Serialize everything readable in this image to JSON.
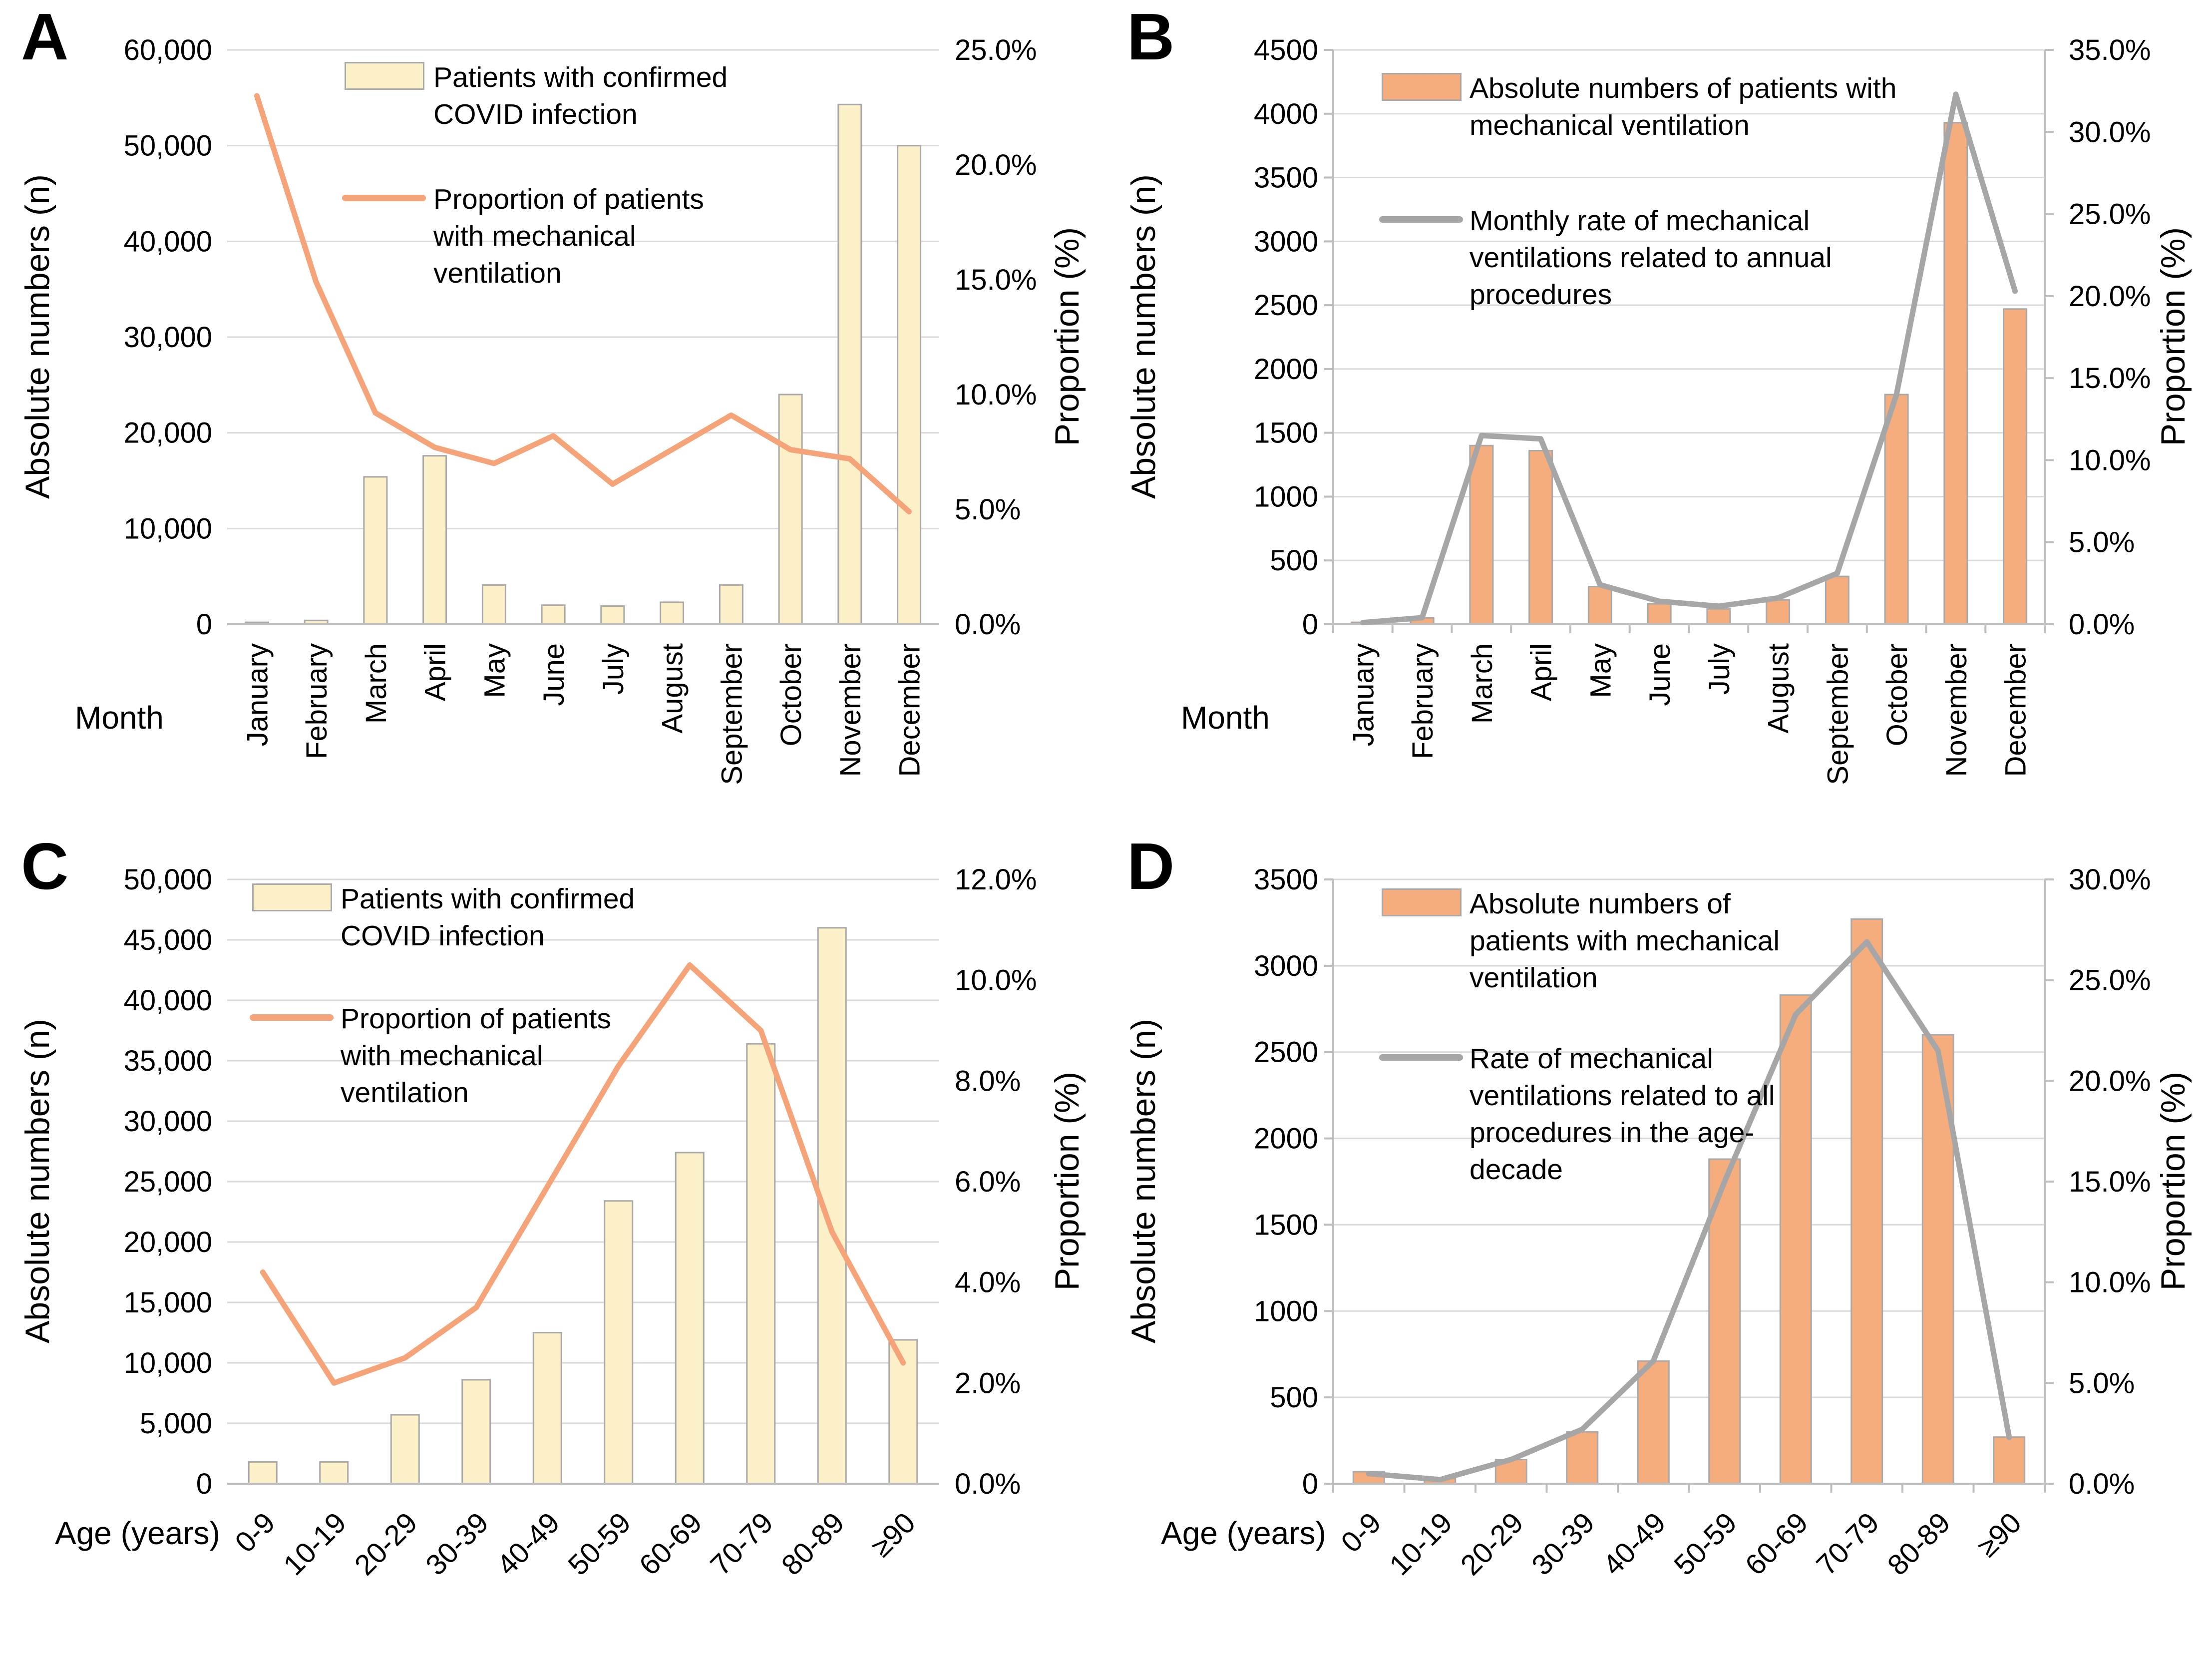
{
  "figure": {
    "background": "#ffffff",
    "panel_letters": [
      "A",
      "B",
      "C",
      "D"
    ]
  },
  "colors": {
    "cream_bar_fill": "#FCF0C8",
    "orange_bar_fill": "#F5AD7D",
    "bar_stroke": "#A9A9A9",
    "orange_line": "#F4A478",
    "gray_line": "#A6A6A6",
    "gridline": "#D9D9D9",
    "axis_line": "#BFBFBF",
    "text": "#000000"
  },
  "chart_data": [
    {
      "panel_label": "A",
      "type": "bar+line",
      "x_axis": {
        "title": "Month",
        "categories": [
          "January",
          "February",
          "March",
          "April",
          "May",
          "June",
          "July",
          "August",
          "September",
          "October",
          "November",
          "December"
        ]
      },
      "left_axis": {
        "title": "Absolute numbers (n)",
        "min": 0,
        "max": 60000,
        "step": 10000,
        "tick_labels": [
          "60,000",
          "50,000",
          "40,000",
          "30,000",
          "20,000",
          "10,000",
          "0"
        ]
      },
      "right_axis": {
        "title": "Proportion (%)",
        "min": 0,
        "max": 25,
        "step": 5,
        "tick_labels": [
          "25.0%",
          "20.0%",
          "15.0%",
          "10.0%",
          "5.0%",
          "0.0%"
        ]
      },
      "bars": {
        "legend_label": "Patients with confirmed COVID infection",
        "color_key": "cream_bar_fill",
        "values": [
          200,
          400,
          15400,
          17600,
          4100,
          2000,
          1900,
          2300,
          4100,
          24000,
          54300,
          50000
        ]
      },
      "line": {
        "legend_label": "Proportion of patients with mechanical ventilation",
        "color_key": "orange_line",
        "values_pct": [
          23.0,
          14.9,
          9.2,
          7.7,
          7.0,
          8.2,
          6.1,
          7.6,
          9.1,
          7.6,
          7.2,
          4.9
        ]
      }
    },
    {
      "panel_label": "B",
      "type": "bar+line",
      "x_axis": {
        "title": "Month",
        "categories": [
          "January",
          "February",
          "March",
          "April",
          "May",
          "June",
          "July",
          "August",
          "September",
          "October",
          "November",
          "December"
        ]
      },
      "left_axis": {
        "title": "Absolute numbers (n)",
        "min": 0,
        "max": 4500,
        "step": 500,
        "tick_labels": [
          "4500",
          "4000",
          "3500",
          "3000",
          "2500",
          "2000",
          "1500",
          "1000",
          "500",
          "0"
        ]
      },
      "right_axis": {
        "title": "Proportion (%)",
        "min": 0,
        "max": 35,
        "step": 5,
        "tick_labels": [
          "35.0%",
          "30.0%",
          "25.0%",
          "20.0%",
          "15.0%",
          "10.0%",
          "5.0%",
          "0.0%"
        ]
      },
      "bars": {
        "legend_label": "Absolute numbers of patients with mechanical ventilation",
        "color_key": "orange_bar_fill",
        "values": [
          15,
          50,
          1400,
          1360,
          295,
          160,
          120,
          190,
          375,
          1800,
          3930,
          2470
        ]
      },
      "line": {
        "legend_label": "Monthly rate of mechanical ventilations related to annual procedures",
        "color_key": "gray_line",
        "values_pct": [
          0.1,
          0.4,
          11.5,
          11.3,
          2.4,
          1.4,
          1.1,
          1.6,
          3.1,
          14.0,
          32.3,
          20.3
        ]
      }
    },
    {
      "panel_label": "C",
      "type": "bar+line",
      "x_axis": {
        "title": "Age (years)",
        "categories": [
          "0-9",
          "10-19",
          "20-29",
          "30-39",
          "40-49",
          "50-59",
          "60-69",
          "70-79",
          "80-89",
          "≥90"
        ]
      },
      "left_axis": {
        "title": "Absolute numbers (n)",
        "min": 0,
        "max": 50000,
        "step": 5000,
        "tick_labels": [
          "50,000",
          "45,000",
          "40,000",
          "35,000",
          "30,000",
          "25,000",
          "20,000",
          "15,000",
          "10,000",
          "5,000",
          "0"
        ]
      },
      "right_axis": {
        "title": "Proportion (%)",
        "min": 0,
        "max": 12,
        "step": 2,
        "tick_labels": [
          "12.0%",
          "10.0%",
          "8.0%",
          "6.0%",
          "4.0%",
          "2.0%",
          "0.0%"
        ]
      },
      "bars": {
        "legend_label": "Patients with confirmed COVID infection",
        "color_key": "cream_bar_fill",
        "values": [
          1800,
          1800,
          5700,
          8600,
          12500,
          23400,
          27400,
          36400,
          46000,
          11900
        ]
      },
      "line": {
        "legend_label": "Proportion of patients with mechanical ventilation",
        "color_key": "orange_line",
        "values_pct": [
          4.2,
          2.0,
          2.5,
          3.5,
          5.9,
          8.3,
          10.3,
          9.0,
          5.0,
          2.4
        ]
      }
    },
    {
      "panel_label": "D",
      "type": "bar+line",
      "x_axis": {
        "title": "Age (years)",
        "categories": [
          "0-9",
          "10-19",
          "20-29",
          "30-39",
          "40-49",
          "50-59",
          "60-69",
          "70-79",
          "80-89",
          "≥90"
        ]
      },
      "left_axis": {
        "title": "Absolute numbers (n)",
        "min": 0,
        "max": 3500,
        "step": 500,
        "tick_labels": [
          "3500",
          "3000",
          "2500",
          "2000",
          "1500",
          "1000",
          "500",
          "0"
        ]
      },
      "right_axis": {
        "title": "Proportion (%)",
        "min": 0,
        "max": 30,
        "step": 5,
        "tick_labels": [
          "30.0%",
          "25.0%",
          "20.0%",
          "15.0%",
          "10.0%",
          "5.0%",
          "0.0%"
        ]
      },
      "bars": {
        "legend_label": "Absolute numbers of patients with mechanical ventilation",
        "color_key": "orange_bar_fill",
        "values": [
          70,
          30,
          140,
          300,
          710,
          1880,
          2830,
          3270,
          2600,
          270
        ]
      },
      "line": {
        "legend_label": "Rate of mechanical ventilations related to all procedures in the age-decade",
        "color_key": "gray_line",
        "values_pct": [
          0.5,
          0.2,
          1.2,
          2.7,
          6.1,
          15.0,
          23.3,
          26.9,
          21.5,
          2.3
        ]
      }
    }
  ]
}
